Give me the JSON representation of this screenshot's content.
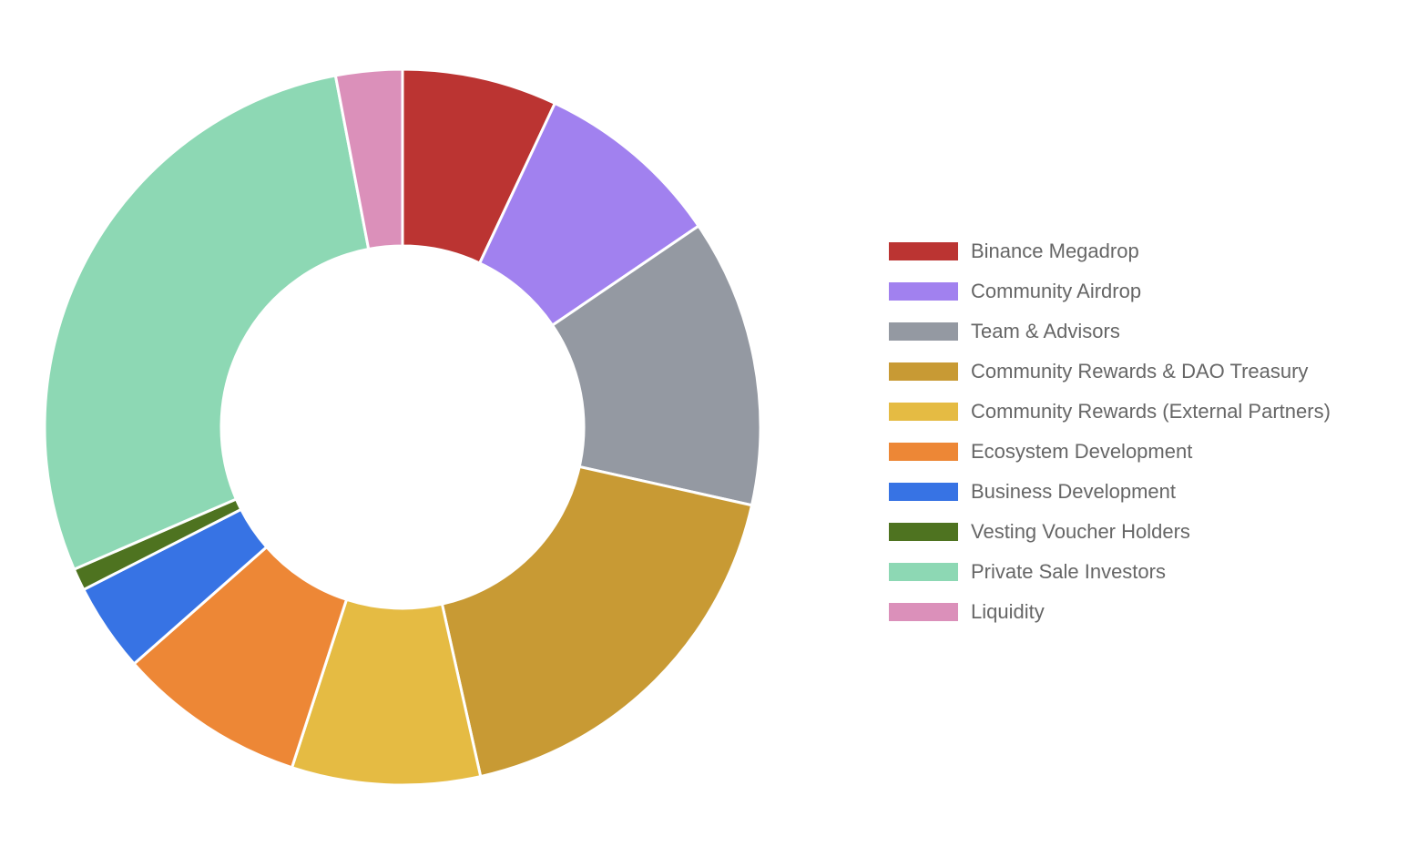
{
  "chart_data": {
    "type": "doughnut",
    "title": "",
    "start_angle_deg": 0,
    "direction": "clockwise",
    "slices": [
      {
        "label": "Binance Megadrop",
        "value": 7.0,
        "color": "#bb3432"
      },
      {
        "label": "Community Airdrop",
        "value": 8.5,
        "color": "#a181ef"
      },
      {
        "label": "Team & Advisors",
        "value": 13.0,
        "color": "#9499a2"
      },
      {
        "label": "Community Rewards & DAO Treasury",
        "value": 18.0,
        "color": "#c89a34"
      },
      {
        "label": "Community Rewards (External Partners)",
        "value": 8.5,
        "color": "#e5bb43"
      },
      {
        "label": "Ecosystem Development",
        "value": 8.5,
        "color": "#ed8736"
      },
      {
        "label": "Business Development",
        "value": 4.0,
        "color": "#3773e4"
      },
      {
        "label": "Vesting Voucher Holders",
        "value": 1.0,
        "color": "#4e7320"
      },
      {
        "label": "Private Sale Investors",
        "value": 28.5,
        "color": "#8dd8b4"
      },
      {
        "label": "Liquidity",
        "value": 3.0,
        "color": "#db90ba"
      }
    ],
    "legend_position": "right",
    "border_color": "#ffffff"
  }
}
